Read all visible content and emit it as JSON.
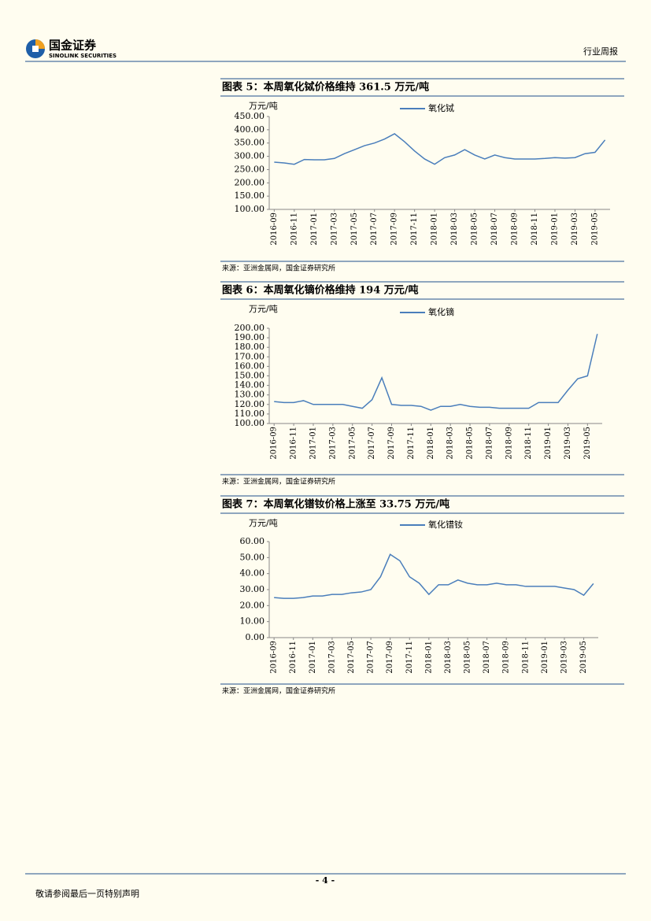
{
  "header": {
    "logo_text": "国金证券",
    "logo_sub": "SINOLINK SECURITIES",
    "section": "行业周报"
  },
  "chart_data": [
    {
      "type": "line",
      "title": "图表 5：本周氧化铽价格维持 361.5 万元/吨",
      "y_label": "万元/吨",
      "source": "来源：亚洲金属网，国金证券研究所",
      "categories": [
        "2016-09",
        null,
        "2016-11",
        null,
        "2017-01",
        null,
        "2017-03",
        null,
        "2017-05",
        null,
        "2017-07",
        null,
        "2017-09",
        null,
        "2017-11",
        null,
        "2018-01",
        null,
        "2018-03",
        null,
        "2018-05",
        null,
        "2018-07",
        null,
        "2018-09",
        null,
        "2018-11",
        null,
        "2019-01",
        null,
        "2019-03",
        null,
        "2019-05",
        null
      ],
      "series": [
        {
          "name": "氧化铽",
          "color": "#4a7ebb",
          "values": [
            278,
            275,
            270,
            288,
            287,
            287,
            292,
            310,
            325,
            340,
            350,
            365,
            385,
            355,
            320,
            290,
            270,
            295,
            305,
            325,
            305,
            290,
            305,
            295,
            290,
            290,
            290,
            292,
            295,
            293,
            295,
            310,
            315,
            361.5
          ]
        }
      ],
      "ylim": [
        100,
        450
      ],
      "yticks": [
        {
          "value": 100,
          "label": "100.00"
        },
        {
          "value": 150,
          "label": "150.00"
        },
        {
          "value": 200,
          "label": "200.00"
        },
        {
          "value": 250,
          "label": "250.00"
        },
        {
          "value": 300,
          "label": "300.00"
        },
        {
          "value": 350,
          "label": "350.00"
        },
        {
          "value": 400,
          "label": "400.00"
        },
        {
          "value": 450,
          "label": "450.00"
        }
      ]
    },
    {
      "type": "line",
      "title": "图表 6：本周氧化镝价格维持 194 万元/吨",
      "y_label": "万元/吨",
      "source": "来源：亚洲金属网，国金证券研究所",
      "categories": [
        "2016-09",
        null,
        "2016-11",
        null,
        "2017-01",
        null,
        "2017-03",
        null,
        "2017-05",
        null,
        "2017-07",
        null,
        "2017-09",
        null,
        "2017-11",
        null,
        "2018-01",
        null,
        "2018-03",
        null,
        "2018-05",
        null,
        "2018-07",
        null,
        "2018-09",
        null,
        "2018-11",
        null,
        "2019-01",
        null,
        "2019-03",
        null,
        "2019-05",
        null
      ],
      "series": [
        {
          "name": "氧化镝",
          "color": "#4a7ebb",
          "values": [
            123,
            122,
            122,
            124,
            120,
            120,
            120,
            120,
            118,
            116,
            125,
            148,
            120,
            119,
            119,
            118,
            114,
            118,
            118,
            120,
            118,
            117,
            117,
            116,
            116,
            116,
            116,
            122,
            122,
            122,
            135,
            147,
            150,
            194
          ]
        }
      ],
      "ylim": [
        100,
        200
      ],
      "yticks": [
        {
          "value": 100,
          "label": "100.00"
        },
        {
          "value": 110,
          "label": "110.00"
        },
        {
          "value": 120,
          "label": "120.00"
        },
        {
          "value": 130,
          "label": "130.00"
        },
        {
          "value": 140,
          "label": "140.00"
        },
        {
          "value": 150,
          "label": "150.00"
        },
        {
          "value": 160,
          "label": "160.00"
        },
        {
          "value": 170,
          "label": "170.00"
        },
        {
          "value": 180,
          "label": "180.00"
        },
        {
          "value": 190,
          "label": "190.00"
        },
        {
          "value": 200,
          "label": "200.00"
        }
      ]
    },
    {
      "type": "line",
      "title": "图表 7：本周氧化镨钕价格上涨至 33.75 万元/吨",
      "y_label": "万元/吨",
      "source": "来源：亚洲金属网，国金证券研究所",
      "categories": [
        "2016-09",
        null,
        "2016-11",
        null,
        "2017-01",
        null,
        "2017-03",
        null,
        "2017-05",
        null,
        "2017-07",
        null,
        "2017-09",
        null,
        "2017-11",
        null,
        "2018-01",
        null,
        "2018-03",
        null,
        "2018-05",
        null,
        "2018-07",
        null,
        "2018-09",
        null,
        "2018-11",
        null,
        "2019-01",
        null,
        "2019-03",
        null,
        "2019-05",
        null
      ],
      "series": [
        {
          "name": "氧化镨钕",
          "color": "#4a7ebb",
          "values": [
            25,
            24.5,
            24.5,
            25,
            26,
            26,
            27,
            27,
            28,
            28.5,
            30,
            38,
            52,
            48,
            38,
            34,
            27,
            33,
            33,
            36,
            34,
            33,
            33,
            34,
            33,
            33,
            32,
            32,
            32,
            32,
            31,
            30,
            26.5,
            33.75
          ]
        }
      ],
      "ylim": [
        0,
        60
      ],
      "yticks": [
        {
          "value": 0,
          "label": "0.00"
        },
        {
          "value": 10,
          "label": "10.00"
        },
        {
          "value": 20,
          "label": "20.00"
        },
        {
          "value": 30,
          "label": "30.00"
        },
        {
          "value": 40,
          "label": "40.00"
        },
        {
          "value": 50,
          "label": "50.00"
        },
        {
          "value": 60,
          "label": "60.00"
        }
      ]
    }
  ],
  "footer": {
    "page": "- 4 -",
    "disclaimer": "敬请参阅最后一页特别声明"
  }
}
